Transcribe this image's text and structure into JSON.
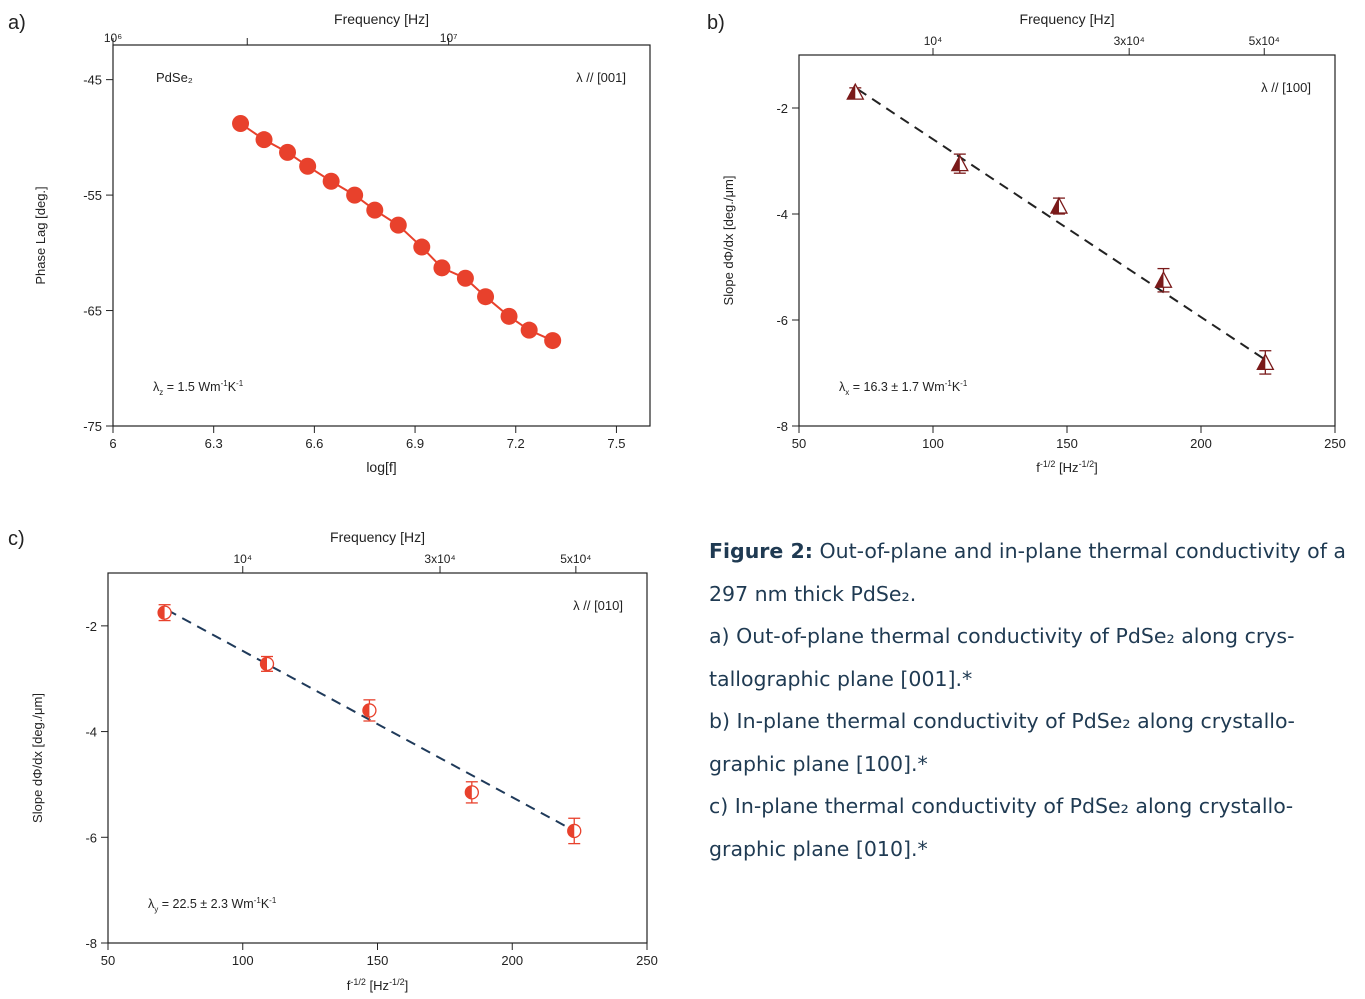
{
  "chart_data": [
    {
      "id": "a",
      "panel_label": "a)",
      "type": "line",
      "top_axis_label": "Frequency [Hz]",
      "top_ticks": [
        {
          "x": 6.0,
          "label": "10⁶"
        },
        {
          "x": 6.4,
          "label": ""
        },
        {
          "x": 7.0,
          "label": "10⁷"
        }
      ],
      "xlabel": "log[f]",
      "ylabel": "Phase Lag [deg.]",
      "xlim": [
        6.0,
        7.6
      ],
      "ylim": [
        -75,
        -42
      ],
      "xticks": [
        6,
        6.3,
        6.6,
        6.9,
        7.2,
        7.5
      ],
      "xtick_labels": [
        "6",
        "6.3",
        "6.6",
        "6.9",
        "7.2",
        "7.5"
      ],
      "yticks": [
        -45,
        -55,
        -65,
        -75
      ],
      "ytick_labels": [
        "-45",
        "-55",
        "-65",
        "-75"
      ],
      "label_tl": "PdSe₂",
      "label_tr": "λ // [001]",
      "annotation": {
        "base": "λ",
        "sub": "z",
        "text": " = 1.5 Wm",
        "sup1": "-1",
        "mid": "K",
        "sup2": "-1"
      },
      "series": [
        {
          "marker": "filled-circle",
          "color": "#e8412c",
          "x": [
            6.38,
            6.45,
            6.52,
            6.58,
            6.65,
            6.72,
            6.78,
            6.85,
            6.92,
            6.98,
            7.05,
            7.11,
            7.18,
            7.24,
            7.31
          ],
          "y": [
            -48.8,
            -50.2,
            -51.3,
            -52.5,
            -53.8,
            -55.0,
            -56.3,
            -57.6,
            -59.5,
            -61.3,
            -62.2,
            -63.8,
            -65.5,
            -66.7,
            -67.6
          ]
        }
      ],
      "fit": {
        "style": "solid",
        "color": "#e8412c"
      }
    },
    {
      "id": "b",
      "panel_label": "b)",
      "type": "scatter",
      "top_axis_label": "Frequency [Hz]",
      "top_ticks": [
        {
          "x": 100,
          "label": "10⁴"
        },
        {
          "x": 173.2,
          "label": "3x10⁴"
        },
        {
          "x": 223.6,
          "label": "5x10⁴"
        }
      ],
      "xlabel": "f-1/2 [Hz-1/2]",
      "xlabel_parts": {
        "a": "f",
        "sup1": "-1/2",
        "b": " [Hz",
        "sup2": "-1/2",
        "c": "]"
      },
      "ylabel": "Slope dΦ/dx [deg./μm]",
      "xlim": [
        50,
        250
      ],
      "ylim": [
        -8,
        -1
      ],
      "xticks": [
        50,
        100,
        150,
        200,
        250
      ],
      "xtick_labels": [
        "50",
        "100",
        "150",
        "200",
        "250"
      ],
      "yticks": [
        -2,
        -4,
        -6,
        -8
      ],
      "ytick_labels": [
        "-2",
        "-4",
        "-6",
        "-8"
      ],
      "label_tr": "λ // [100]",
      "annotation": {
        "base": "λ",
        "sub": "x",
        "text": " = 16.3 ± 1.7 Wm",
        "sup1": "-1",
        "mid": "K",
        "sup2": "-1"
      },
      "series": [
        {
          "marker": "half-triangle",
          "color": "#7a1a1a",
          "x": [
            71,
            110,
            147,
            186,
            224
          ],
          "y": [
            -1.7,
            -3.05,
            -3.85,
            -5.25,
            -6.8
          ],
          "err": [
            0.08,
            0.18,
            0.15,
            0.22,
            0.22
          ]
        }
      ],
      "fit": {
        "style": "dashed",
        "color": "#222222",
        "x": [
          72,
          224
        ],
        "y": [
          -1.65,
          -6.75
        ]
      }
    },
    {
      "id": "c",
      "panel_label": "c)",
      "type": "scatter",
      "top_axis_label": "Frequency [Hz]",
      "top_ticks": [
        {
          "x": 100,
          "label": "10⁴"
        },
        {
          "x": 173.2,
          "label": "3x10⁴"
        },
        {
          "x": 223.6,
          "label": "5x10⁴"
        }
      ],
      "xlabel": "f-1/2 [Hz-1/2]",
      "xlabel_parts": {
        "a": "f",
        "sup1": "-1/2",
        "b": " [Hz",
        "sup2": "-1/2",
        "c": "]"
      },
      "ylabel": "Slope dΦ/dx [deg./μm]",
      "xlim": [
        50,
        250
      ],
      "ylim": [
        -8,
        -1
      ],
      "xticks": [
        50,
        100,
        150,
        200,
        250
      ],
      "xtick_labels": [
        "50",
        "100",
        "150",
        "200",
        "250"
      ],
      "yticks": [
        -2,
        -4,
        -6,
        -8
      ],
      "ytick_labels": [
        "-2",
        "-4",
        "-6",
        "-8"
      ],
      "label_tr": "λ // [010]",
      "annotation": {
        "base": "λ",
        "sub": "y",
        "text": " = 22.5 ± 2.3 Wm",
        "sup1": "-1",
        "mid": "K",
        "sup2": "-1"
      },
      "series": [
        {
          "marker": "half-circle",
          "color": "#e8412c",
          "x": [
            71,
            109,
            147,
            185,
            223
          ],
          "y": [
            -1.75,
            -2.72,
            -3.6,
            -5.15,
            -5.88
          ],
          "err": [
            0.15,
            0.14,
            0.2,
            0.2,
            0.24
          ]
        }
      ],
      "fit": {
        "style": "dashed",
        "color": "#1f3a5a",
        "x": [
          72,
          222
        ],
        "y": [
          -1.7,
          -5.85
        ]
      }
    }
  ],
  "caption": {
    "bold": "Figure 2:",
    "line1": " Out-of-plane and in-plane thermal conductivity of a 297 nm thick PdSe₂.",
    "line2": "a) Out-of-plane thermal conductivity of PdSe₂ along crys­tallographic plane [001].*",
    "line3": "b) In-plane thermal conductivity of PdSe₂ along crystallo­graphic plane [100].*",
    "line4": "c) In-plane thermal conductivity of PdSe₂ along crystallo­graphic plane [010].*"
  }
}
